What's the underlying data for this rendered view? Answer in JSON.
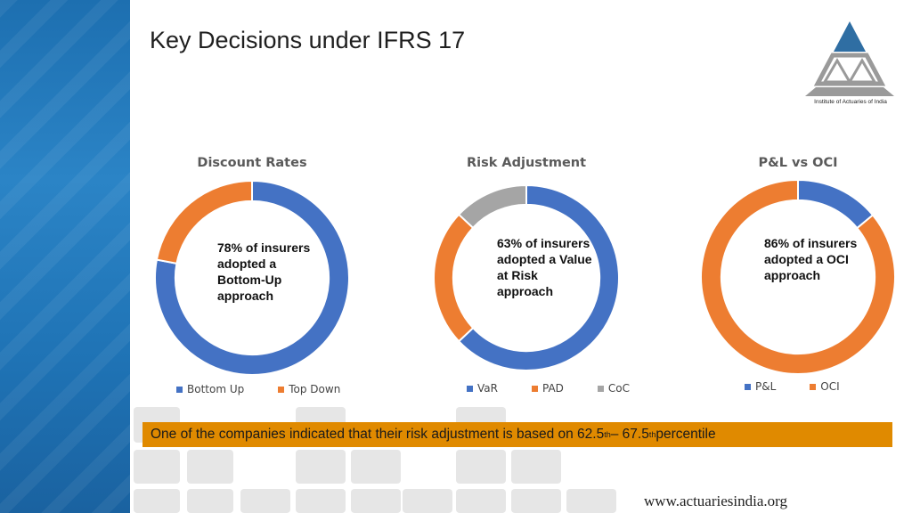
{
  "slide": {
    "title": "Key Decisions under IFRS 17",
    "logo_text": "Institute of Actuaries of India",
    "footer": "www.actuariesindia.org",
    "banner": {
      "text_before": "One of the companies indicated that their risk adjustment is based on 62.5",
      "sup1": "th",
      "text_mid": " – 67.5",
      "sup2": "th",
      "text_after": " percentile"
    }
  },
  "colors": {
    "blue": "#4472c4",
    "orange": "#ed7d31",
    "gray": "#a5a5a5",
    "banner": "#e08a00"
  },
  "chart_data": [
    {
      "type": "pie",
      "title": "Discount Rates",
      "categories": [
        "Bottom Up",
        "Top Down"
      ],
      "values": [
        78,
        22
      ],
      "colors": [
        "#4472c4",
        "#ed7d31"
      ],
      "annotation": "78% of insurers adopted a Bottom-Up approach",
      "legend": "bottom"
    },
    {
      "type": "pie",
      "title": "Risk Adjustment",
      "categories": [
        "VaR",
        "PAD",
        "CoC"
      ],
      "values": [
        63,
        24,
        13
      ],
      "colors": [
        "#4472c4",
        "#ed7d31",
        "#a5a5a5"
      ],
      "annotation": "63% of insurers adopted a Value at Risk approach",
      "legend": "bottom"
    },
    {
      "type": "pie",
      "title": "P&L vs OCI",
      "categories": [
        "P&L",
        "OCI"
      ],
      "values": [
        14,
        86
      ],
      "colors": [
        "#4472c4",
        "#ed7d31"
      ],
      "annotation": "86% of insurers adopted a OCI approach",
      "legend": "bottom"
    }
  ]
}
